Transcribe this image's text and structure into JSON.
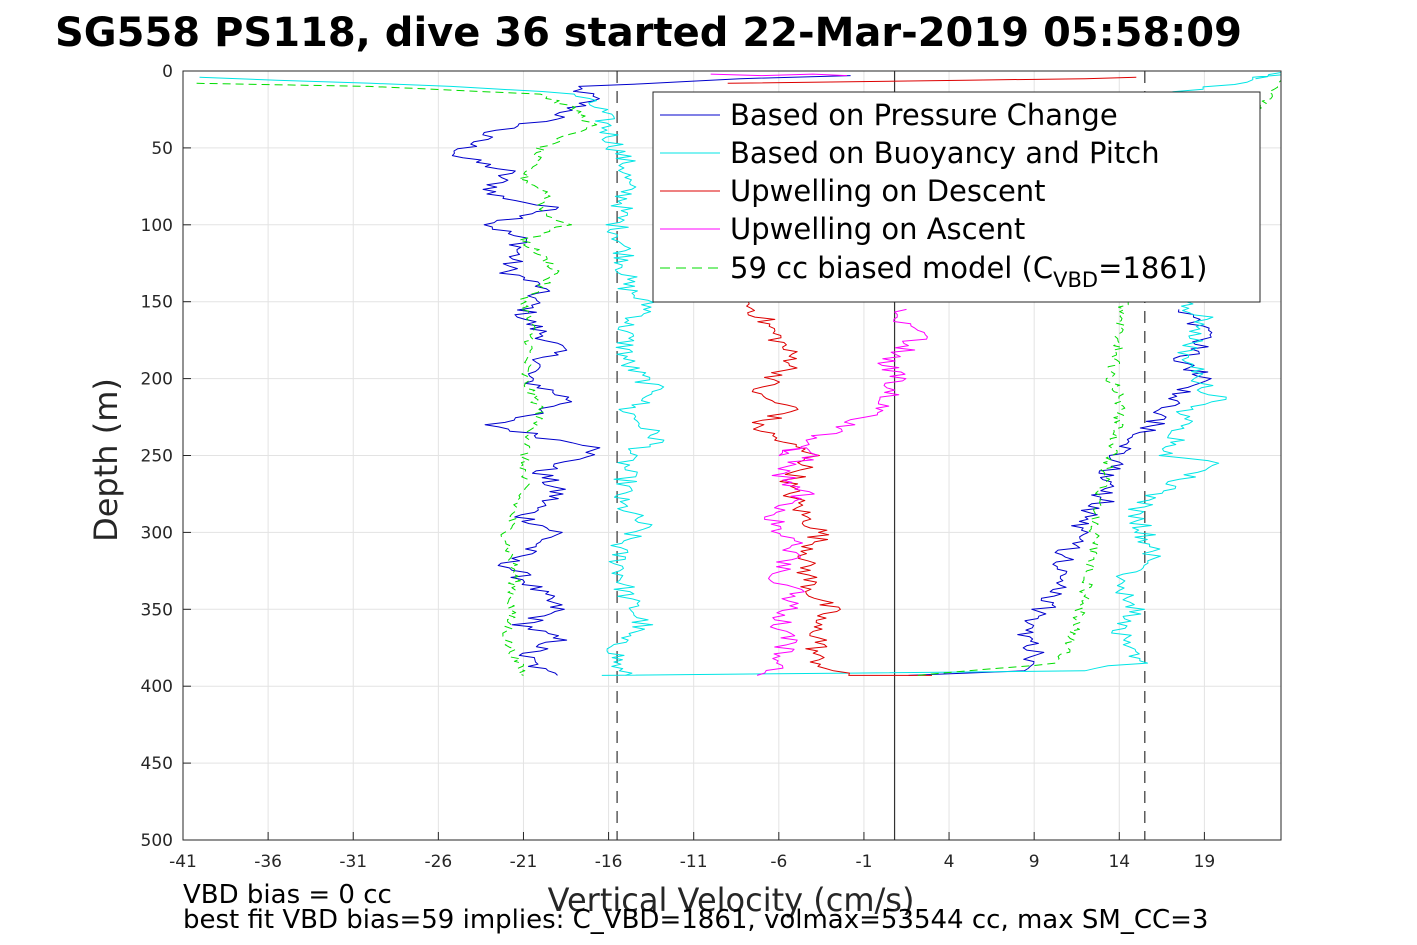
{
  "chart_data": {
    "type": "line",
    "title": "SG558 PS118, dive 36 started 22-Mar-2019 05:58:09",
    "xlabel": "Vertical Velocity (cm/s)",
    "ylabel": "Depth (m)",
    "xlim": [
      -41,
      23.5
    ],
    "ylim": [
      0,
      500
    ],
    "y_reversed": true,
    "grid": true,
    "legend_position": "top-right",
    "xticks": [
      -41,
      -36,
      -31,
      -26,
      -21,
      -16,
      -11,
      -6,
      -1,
      4,
      9,
      14,
      19
    ],
    "yticks": [
      0,
      50,
      100,
      150,
      200,
      250,
      300,
      350,
      400,
      450,
      500
    ],
    "reference_lines": {
      "vertical_solid_x": 0.8,
      "vertical_dashed_x": [
        -15.5,
        15.5
      ]
    },
    "legend": {
      "line1": "Based on Pressure Change",
      "line2": "Based on Buoyancy and Pitch",
      "line3": "Upwelling on Descent",
      "line4": "Upwelling on Ascent",
      "line5_main": "59 cc biased model (C",
      "line5_sub": "VBD",
      "line5_end": "=1861)"
    },
    "series": [
      {
        "name": "Based on Pressure Change",
        "color": "#0000cc",
        "descent": {
          "x": [
            -2,
            -8,
            -18,
            -17,
            -19,
            -23,
            -25,
            -22,
            -23,
            -19,
            -23,
            -21,
            -22,
            -20,
            -21,
            -19,
            -21,
            -18,
            -23,
            -19,
            -16,
            -20,
            -19,
            -21,
            -19,
            -22,
            -20,
            -19,
            -21,
            -19,
            -21,
            -20,
            -19
          ],
          "y": [
            3,
            5,
            10,
            18,
            30,
            40,
            55,
            65,
            80,
            90,
            100,
            110,
            130,
            140,
            160,
            180,
            200,
            215,
            230,
            240,
            245,
            260,
            275,
            290,
            300,
            320,
            340,
            350,
            360,
            370,
            380,
            390,
            393
          ]
        },
        "ascent": {
          "x": [
            2,
            9,
            9,
            8.5,
            9.5,
            10,
            10.5,
            11,
            11.5,
            12,
            13,
            13,
            13.5,
            14,
            15.5,
            16.5,
            17.5,
            19.5,
            17.5,
            19.5,
            18,
            17.5
          ],
          "y": [
            393,
            390,
            375,
            365,
            350,
            340,
            330,
            310,
            300,
            290,
            280,
            270,
            260,
            250,
            235,
            225,
            210,
            200,
            190,
            170,
            160,
            155
          ]
        }
      },
      {
        "name": "Based on Buoyancy and Pitch",
        "color": "#00e5e5",
        "descent": {
          "x": [
            -40,
            -35,
            -30,
            -25,
            -18,
            -16.5,
            -16,
            -15,
            -15,
            -15.5,
            -15,
            -15,
            -13.5,
            -15,
            -15,
            -13,
            -15,
            -13,
            -15,
            -15,
            -15.5,
            -14,
            -15.5,
            -15,
            -14,
            -15.5,
            -15.5,
            -15.5,
            -15
          ],
          "y": [
            4,
            6,
            8,
            10,
            15,
            25,
            40,
            60,
            80,
            100,
            120,
            140,
            155,
            165,
            190,
            210,
            220,
            240,
            250,
            270,
            280,
            295,
            310,
            340,
            360,
            370,
            380,
            390,
            393
          ]
        },
        "ascent": {
          "x": [
            -16,
            12,
            15,
            14,
            15,
            14,
            16,
            15.5,
            15,
            17,
            19.5,
            17,
            17.5,
            18,
            20,
            18.5,
            18,
            19,
            17.5,
            17,
            24,
            22
          ],
          "y": [
            393,
            390,
            385,
            370,
            350,
            330,
            320,
            300,
            285,
            270,
            255,
            250,
            240,
            220,
            215,
            200,
            180,
            160,
            150,
            15,
            1,
            5
          ]
        }
      },
      {
        "name": "Upwelling on Descent",
        "color": "#dd0000",
        "descent": {
          "x": [
            -8,
            -7,
            -6,
            -5,
            -7.5,
            -5,
            -7.5,
            -6,
            -4,
            -5.5,
            -4.5,
            -3.5,
            -4.5,
            -4,
            -3,
            -4,
            -3.5,
            -4,
            -3,
            -2,
            2,
            3
          ],
          "y": [
            150,
            160,
            175,
            190,
            210,
            220,
            230,
            240,
            250,
            270,
            290,
            300,
            320,
            340,
            350,
            360,
            370,
            380,
            390,
            393,
            393,
            393
          ]
        },
        "surface": {
          "x": [
            -9,
            5,
            12,
            15
          ],
          "y": [
            8,
            6,
            5,
            4
          ]
        }
      },
      {
        "name": "Upwelling on Ascent",
        "color": "#ff00ff",
        "ascent": {
          "x": [
            -7,
            -6,
            -5.5,
            -6,
            -5,
            -6,
            -5,
            -6.5,
            -4.5,
            -6,
            -4,
            -5,
            -6,
            -4,
            -2,
            -1,
            0.5,
            1,
            0.5,
            1.5,
            2.5,
            1,
            1.5
          ],
          "y": [
            393,
            385,
            370,
            360,
            340,
            330,
            310,
            290,
            275,
            260,
            250,
            245,
            250,
            240,
            230,
            225,
            215,
            200,
            190,
            180,
            170,
            160,
            155
          ]
        },
        "surface": {
          "x": [
            -10,
            -7,
            -4,
            -2
          ],
          "y": [
            2,
            3,
            2,
            3
          ]
        }
      },
      {
        "name": "59 cc biased model (C_VBD=1861)",
        "color": "#00dd00",
        "dashed": true,
        "descent": {
          "x": [
            -40,
            -30,
            -20,
            -18,
            -17,
            -20,
            -21,
            -19.5,
            -20,
            -18.5,
            -21,
            -19,
            -21,
            -20.5,
            -21,
            -20,
            -21,
            -21,
            -22,
            -21.5,
            -22,
            -21
          ],
          "y": [
            8,
            10,
            15,
            25,
            35,
            50,
            70,
            80,
            90,
            100,
            110,
            130,
            150,
            170,
            200,
            220,
            250,
            270,
            300,
            330,
            370,
            393
          ]
        },
        "ascent": {
          "x": [
            2,
            10.5,
            11,
            11.5,
            12,
            12.5,
            12.5,
            13,
            13.5,
            14,
            14,
            13.5,
            14,
            14,
            24
          ],
          "y": [
            393,
            385,
            375,
            360,
            340,
            310,
            290,
            270,
            250,
            230,
            210,
            200,
            180,
            155,
            0
          ]
        }
      }
    ],
    "notes": [
      "VBD bias = 0 cc",
      "best fit VBD bias=59 implies: C_VBD=1861, volmax=53544 cc, max SM_CC=3"
    ]
  }
}
